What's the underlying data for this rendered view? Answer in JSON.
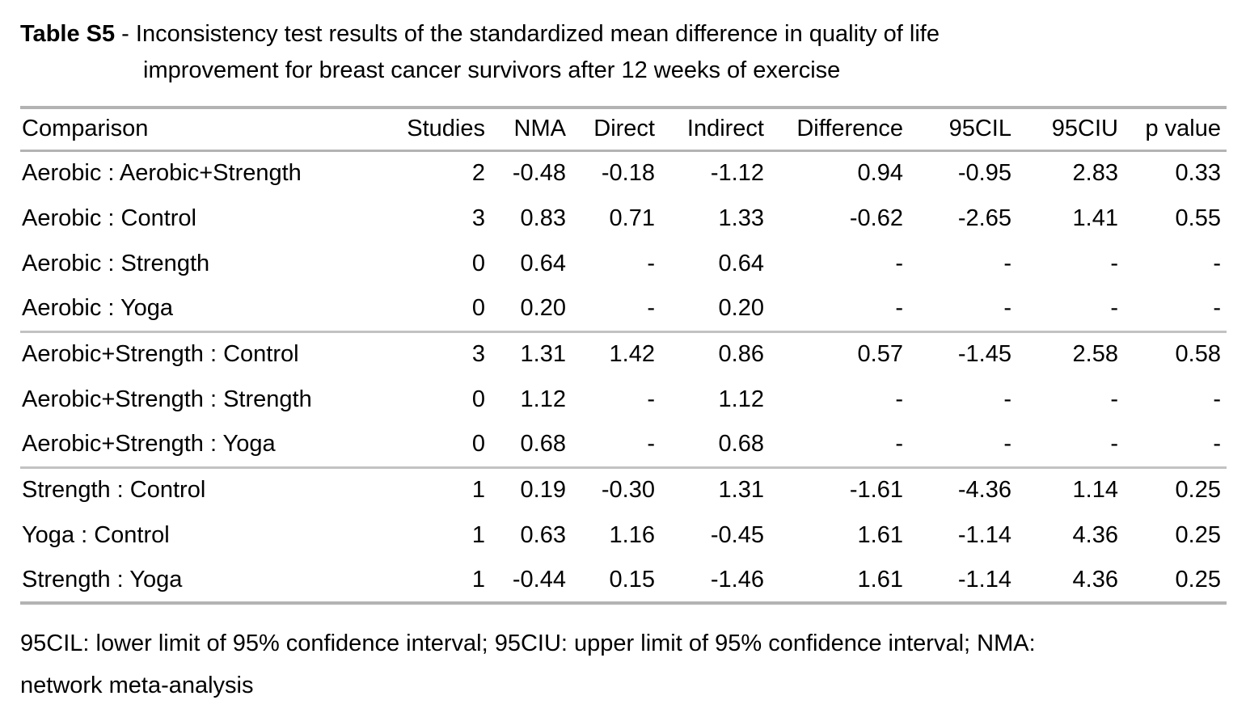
{
  "caption": {
    "label": "Table S5",
    "separator": " - ",
    "title_lines": [
      "Inconsistency test results of the standardized mean difference in quality of life",
      "improvement for breast cancer survivors after 12 weeks of exercise"
    ]
  },
  "table": {
    "columns": [
      "Comparison",
      "Studies",
      "NMA",
      "Direct",
      "Indirect",
      "Difference",
      "95CIL",
      "95CIU",
      "p value"
    ],
    "missing_marker": "-",
    "groups": [
      {
        "rows": [
          [
            "Aerobic : Aerobic+Strength",
            "2",
            "-0.48",
            "-0.18",
            "-1.12",
            "0.94",
            "-0.95",
            "2.83",
            "0.33"
          ],
          [
            "Aerobic : Control",
            "3",
            "0.83",
            "0.71",
            "1.33",
            "-0.62",
            "-2.65",
            "1.41",
            "0.55"
          ],
          [
            "Aerobic : Strength",
            "0",
            "0.64",
            "-",
            "0.64",
            "-",
            "-",
            "-",
            "-"
          ],
          [
            "Aerobic : Yoga",
            "0",
            "0.20",
            "-",
            "0.20",
            "-",
            "-",
            "-",
            "-"
          ]
        ]
      },
      {
        "rows": [
          [
            "Aerobic+Strength : Control",
            "3",
            "1.31",
            "1.42",
            "0.86",
            "0.57",
            "-1.45",
            "2.58",
            "0.58"
          ],
          [
            "Aerobic+Strength : Strength",
            "0",
            "1.12",
            "-",
            "1.12",
            "-",
            "-",
            "-",
            "-"
          ],
          [
            "Aerobic+Strength : Yoga",
            "0",
            "0.68",
            "-",
            "0.68",
            "-",
            "-",
            "-",
            "-"
          ]
        ]
      },
      {
        "rows": [
          [
            "Strength : Control",
            "1",
            "0.19",
            "-0.30",
            "1.31",
            "-1.61",
            "-4.36",
            "1.14",
            "0.25"
          ],
          [
            "Yoga : Control",
            "1",
            "0.63",
            "1.16",
            "-0.45",
            "1.61",
            "-1.14",
            "4.36",
            "0.25"
          ],
          [
            "Strength : Yoga",
            "1",
            "-0.44",
            "0.15",
            "-1.46",
            "1.61",
            "-1.14",
            "4.36",
            "0.25"
          ]
        ]
      }
    ]
  },
  "footnote_lines": [
    "95CIL: lower limit of 95% confidence interval; 95CIU: upper limit of 95% confidence interval; NMA:",
    "network meta-analysis"
  ],
  "colors": {
    "background": "#ffffff",
    "text": "#000000",
    "rule": "#b3b3b3"
  }
}
